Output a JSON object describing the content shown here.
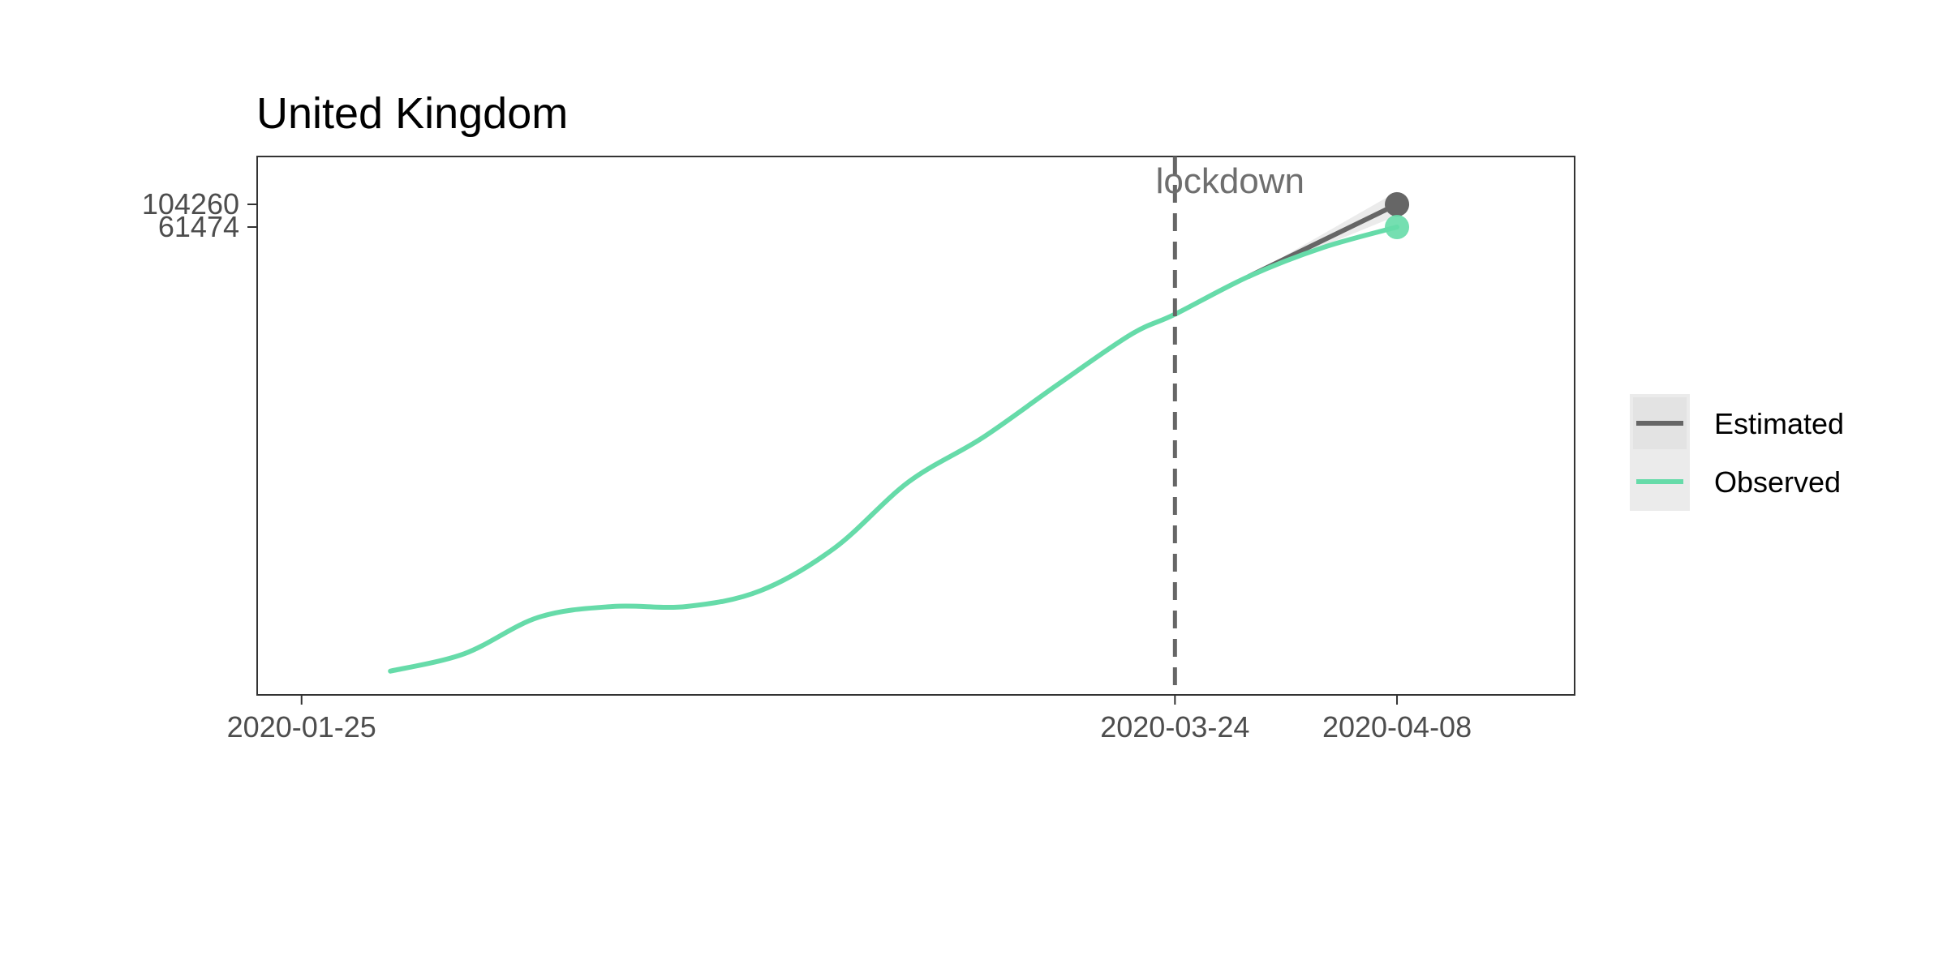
{
  "chart_data": {
    "type": "line",
    "title": "United Kingdom",
    "xlabel": "",
    "ylabel": "",
    "y_scale": "log",
    "x_ticks": [
      "2020-01-25",
      "2020-03-24",
      "2020-04-08"
    ],
    "y_ticks": [
      104260,
      61474
    ],
    "xlim": [
      "2020-01-22",
      "2020-04-20"
    ],
    "grid": false,
    "legend_position": "right",
    "annotations": [
      {
        "label": "lockdown",
        "type": "vline",
        "x": "2020-03-24"
      }
    ],
    "series": [
      {
        "name": "Observed",
        "color": "#66dba9",
        "points": [
          {
            "x": "2020-01-31",
            "y": 2
          },
          {
            "x": "2020-02-05",
            "y": 3
          },
          {
            "x": "2020-02-10",
            "y": 7
          },
          {
            "x": "2020-02-15",
            "y": 9
          },
          {
            "x": "2020-02-20",
            "y": 9
          },
          {
            "x": "2020-02-25",
            "y": 13
          },
          {
            "x": "2020-03-01",
            "y": 35
          },
          {
            "x": "2020-03-06",
            "y": 163
          },
          {
            "x": "2020-03-11",
            "y": 456
          },
          {
            "x": "2020-03-16",
            "y": 1543
          },
          {
            "x": "2020-03-21",
            "y": 5018
          },
          {
            "x": "2020-03-24",
            "y": 8077
          },
          {
            "x": "2020-03-29",
            "y": 19522
          },
          {
            "x": "2020-04-03",
            "y": 38168
          },
          {
            "x": "2020-04-08",
            "y": 61474
          }
        ]
      },
      {
        "name": "Estimated",
        "color": "#666666",
        "points": [
          {
            "x": "2020-03-29",
            "y": 19522
          },
          {
            "x": "2020-04-08",
            "y": 104260
          }
        ],
        "ribbon": [
          {
            "x": "2020-03-29",
            "lo": 19522,
            "hi": 19522
          },
          {
            "x": "2020-04-08",
            "lo": 80000,
            "hi": 140000
          }
        ]
      }
    ]
  },
  "legend": {
    "items": [
      {
        "label": "Estimated",
        "color": "#666666"
      },
      {
        "label": "Observed",
        "color": "#66dba9"
      }
    ]
  }
}
